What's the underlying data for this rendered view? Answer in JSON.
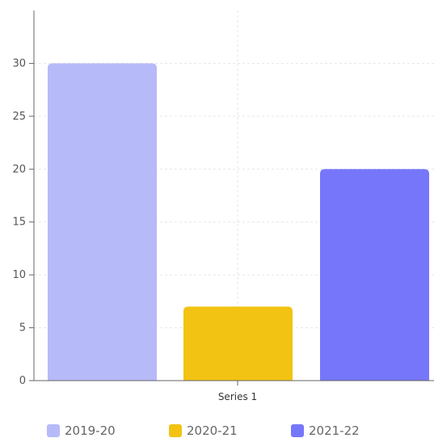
{
  "chart_data": {
    "type": "bar",
    "categories": [
      "Series 1"
    ],
    "series": [
      {
        "name": "2019-20",
        "values": [
          30
        ],
        "color": "#b7baf9"
      },
      {
        "name": "2020-21",
        "values": [
          7
        ],
        "color": "#f2c312"
      },
      {
        "name": "2021-22",
        "values": [
          20
        ],
        "color": "#7676fb"
      }
    ],
    "yticks": [
      0,
      5,
      10,
      15,
      20,
      25,
      30
    ],
    "ylim": [
      0,
      35
    ],
    "grid": true,
    "legend_position": "bottom-left",
    "title": "",
    "xlabel": "",
    "ylabel": ""
  }
}
